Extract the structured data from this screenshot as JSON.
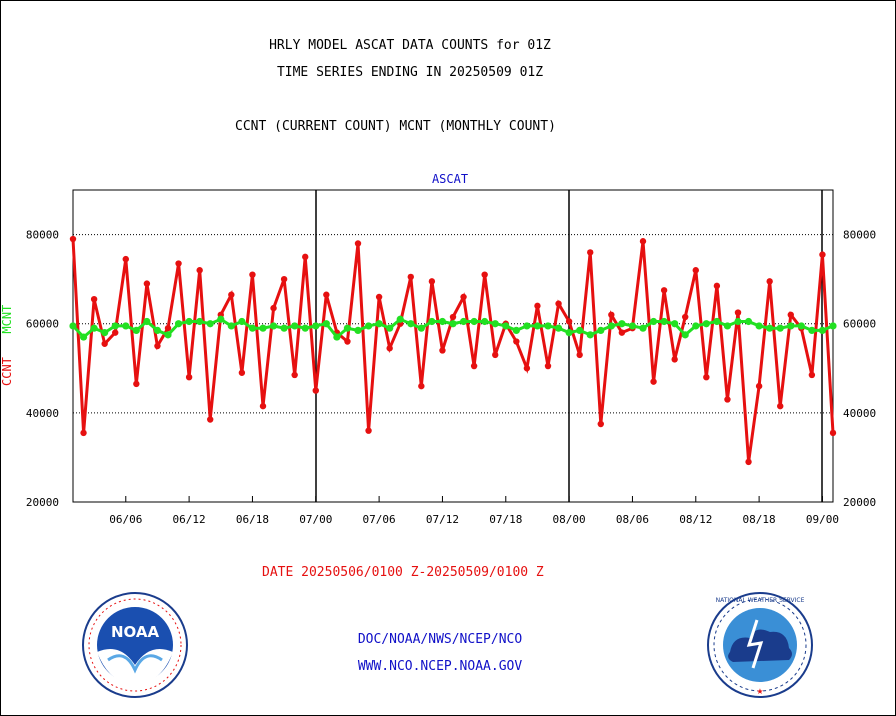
{
  "header": {
    "line1": "HRLY MODEL ASCAT DATA COUNTS for 01Z",
    "line2": "TIME SERIES ENDING IN 20250509 01Z",
    "line3": "CCNT (CURRENT COUNT) MCNT (MONTHLY COUNT)"
  },
  "footer": {
    "date_range": "DATE 20250506/0100 Z-20250509/0100 Z",
    "org": "DOC/NOAA/NWS/NCEP/NCO",
    "url": "WWW.NCO.NCEP.NOAA.GOV"
  },
  "logos": {
    "left": "NOAA",
    "right": "NATIONAL WEATHER SERVICE"
  },
  "chart_data": {
    "type": "line",
    "title": "ASCAT",
    "ylabel_ccnt": "CCNT",
    "ylabel_mcnt": "MCNT",
    "ylim": [
      20000,
      90000
    ],
    "yticks": [
      "20000",
      "40000",
      "60000",
      "80000"
    ],
    "grid_y": [
      40000,
      60000,
      80000
    ],
    "xticks": [
      "06/06",
      "06/12",
      "06/18",
      "07/00",
      "07/06",
      "07/12",
      "07/18",
      "08/00",
      "08/06",
      "08/12",
      "08/18",
      "09/00"
    ],
    "colors": {
      "ccnt": "#e61010",
      "mcnt": "#22e022",
      "title": "#1010c8",
      "grid": "#000000"
    },
    "series": [
      {
        "key": "ccnt",
        "values": [
          79000,
          35500,
          65500,
          55500,
          58000,
          74500,
          46500,
          69000,
          55000,
          59000,
          73500,
          48000,
          72000,
          38500,
          62000,
          66500,
          49000,
          71000,
          41500,
          63500,
          70000,
          48500,
          75000,
          45000,
          66500,
          58000,
          56000,
          78000,
          36000,
          66000,
          54500,
          60000,
          70500,
          46000,
          69500,
          54000,
          61500,
          66000,
          50500,
          71000,
          53000,
          60000,
          56000,
          50000,
          64000,
          50500,
          64500,
          60500,
          53000,
          76000,
          37500,
          62000,
          58000,
          59000,
          78500,
          47000,
          67500,
          52000,
          61500,
          72000,
          48000,
          68500,
          43000,
          62500,
          29000,
          46000,
          69500,
          41500,
          62000,
          59000,
          48500,
          75500,
          35500
        ]
      },
      {
        "key": "mcnt",
        "values": [
          59500,
          57000,
          59000,
          58000,
          59500,
          59500,
          58500,
          60500,
          58500,
          57500,
          60000,
          60500,
          60500,
          60000,
          61000,
          59500,
          60500,
          59000,
          59000,
          59500,
          59000,
          59500,
          59000,
          59500,
          60000,
          57000,
          59000,
          58500,
          59500,
          60000,
          59000,
          61000,
          60000,
          59000,
          60500,
          60500,
          60000,
          60500,
          60500,
          60500,
          60000,
          59500,
          58500,
          59500,
          59500,
          59500,
          59000,
          58000,
          58500,
          57500,
          58500,
          59500,
          60000,
          59500,
          59000,
          60500,
          60500,
          60000,
          57500,
          59500,
          60000,
          60500,
          59500,
          60500,
          60500,
          59500,
          59000,
          59000,
          59500,
          59500,
          58500,
          58500,
          59500
        ]
      }
    ]
  }
}
